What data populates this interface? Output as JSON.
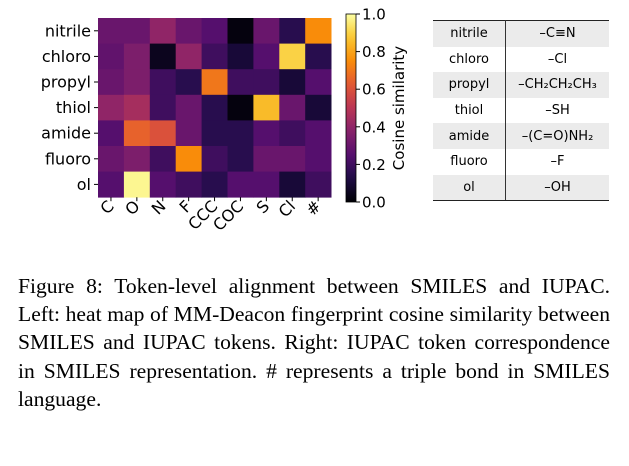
{
  "chart_data": {
    "type": "heatmap",
    "title": "",
    "xlabel": "",
    "ylabel": "",
    "rows": [
      "nitrile",
      "chloro",
      "propyl",
      "thiol",
      "amide",
      "fluoro",
      "ol"
    ],
    "columns": [
      "C",
      "O",
      "N",
      "F",
      "CCC",
      "COC",
      "S",
      "Cl",
      "#"
    ],
    "values": [
      [
        0.3,
        0.3,
        0.4,
        0.3,
        0.25,
        0.02,
        0.3,
        0.15,
        0.75
      ],
      [
        0.28,
        0.35,
        0.05,
        0.4,
        0.2,
        0.1,
        0.25,
        0.9,
        0.15
      ],
      [
        0.3,
        0.35,
        0.2,
        0.15,
        0.7,
        0.2,
        0.2,
        0.1,
        0.25
      ],
      [
        0.4,
        0.45,
        0.2,
        0.3,
        0.15,
        0.02,
        0.85,
        0.3,
        0.1
      ],
      [
        0.25,
        0.65,
        0.6,
        0.3,
        0.15,
        0.15,
        0.25,
        0.2,
        0.25
      ],
      [
        0.3,
        0.35,
        0.2,
        0.75,
        0.2,
        0.15,
        0.3,
        0.3,
        0.25
      ],
      [
        0.25,
        0.98,
        0.25,
        0.2,
        0.15,
        0.25,
        0.25,
        0.1,
        0.2
      ]
    ],
    "colormap": "inferno",
    "vmin": 0.0,
    "vmax": 1.0,
    "colorbar": {
      "label": "Cosine similarity",
      "ticks": [
        0.0,
        0.2,
        0.4,
        0.6,
        0.8,
        1.0
      ],
      "tick_labels": [
        "0.0",
        "0.2",
        "0.4",
        "0.6",
        "0.8",
        "1.0"
      ]
    }
  },
  "correspondence_table": [
    {
      "iupac": "nitrile",
      "smiles": "–C≡N"
    },
    {
      "iupac": "chloro",
      "smiles": "–Cl"
    },
    {
      "iupac": "propyl",
      "smiles": "–CH₂CH₂CH₃"
    },
    {
      "iupac": "thiol",
      "smiles": "–SH"
    },
    {
      "iupac": "amide",
      "smiles": "–(C=O)NH₂"
    },
    {
      "iupac": "fluoro",
      "smiles": "–F"
    },
    {
      "iupac": "ol",
      "smiles": "–OH"
    }
  ],
  "caption": "Figure 8: Token-level alignment between SMILES and IUPAC. Left: heat map of MM-Deacon fingerprint cosine similarity between SMILES and IUPAC tokens. Right: IUPAC token correspondence in SMILES representation. # represents a triple bond in SMILES language."
}
